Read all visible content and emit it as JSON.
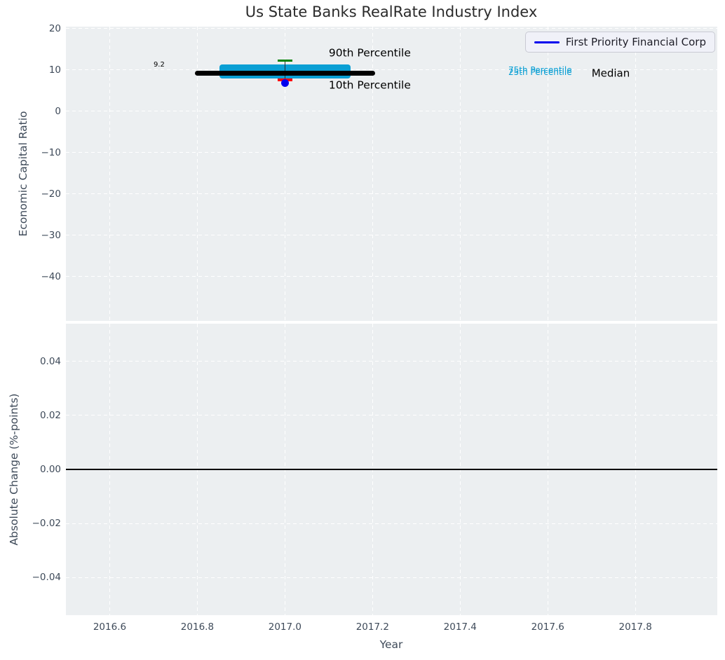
{
  "title": "Us State Banks RealRate Industry Index",
  "legend": {
    "label": "First Priority Financial Corp"
  },
  "colors": {
    "figure_background": "#ffffff",
    "plot_background": "#eceff1",
    "grid": "#ffffff",
    "tick_text": "#3e4a59",
    "title_text": "#2b2b2b",
    "percentile_box": "#0a9fd4",
    "median_line": "#000000",
    "whisker": "#2a2a2a",
    "p90_cap": "#008000",
    "p10_cap": "#ff0000",
    "company_marker": "#0000ee",
    "zero_line": "#000000"
  },
  "chart_data": [
    {
      "type": "box",
      "name": "economic-capital-ratio",
      "ylabel": "Economic Capital Ratio",
      "ylim": [
        -50.7,
        20.5
      ],
      "yticks": [
        20,
        10,
        0,
        -10,
        -20,
        -30,
        -40
      ],
      "xlim": [
        2016.5,
        2017.987
      ],
      "xticks": [
        2016.6,
        2016.8,
        2017.0,
        2017.2,
        2017.4,
        2017.6,
        2017.8
      ],
      "show_x_tick_labels": false,
      "grid": true,
      "industry_box": {
        "center_year": 2017.0,
        "median": 9.2,
        "median_label": "9.2",
        "median_year_span": [
          2016.8,
          2017.2
        ],
        "p75": 10.6,
        "p25": 8.8,
        "box_year_span": [
          2016.85,
          2017.15
        ],
        "p90": 12.3,
        "p10": 7.6,
        "cap_half_width_years": 0.017
      },
      "company_point": {
        "label": "First Priority Financial Corp",
        "year": 2017.0,
        "value": 6.8
      },
      "annotations": [
        {
          "text": "90th Percentile",
          "year": 2017.1,
          "value": 14.1,
          "color": "#000000",
          "size": 15.5
        },
        {
          "text": "10th Percentile",
          "year": 2017.1,
          "value": 6.2,
          "color": "#000000",
          "size": 15.5
        },
        {
          "text": "9.2",
          "year": 2016.7,
          "value": 11.1,
          "color": "#000000",
          "size": 10
        },
        {
          "text": "75th Percentile",
          "year": 2017.51,
          "value": 10.0,
          "color": "#0a9fd4",
          "size": 12
        },
        {
          "text": "25th Percentile",
          "year": 2017.51,
          "value": 9.4,
          "color": "#0a9fd4",
          "size": 12
        },
        {
          "text": "Median",
          "year": 2017.7,
          "value": 9.1,
          "color": "#000000",
          "size": 15
        }
      ]
    },
    {
      "type": "line",
      "name": "absolute-change",
      "ylabel": "Absolute Change (%-points)",
      "xlabel": "Year",
      "ylim": [
        -0.054,
        0.054
      ],
      "yticks": [
        0.04,
        0.02,
        0,
        -0.02,
        -0.04
      ],
      "xlim": [
        2016.5,
        2017.987
      ],
      "xticks": [
        2016.6,
        2016.8,
        2017.0,
        2017.2,
        2017.4,
        2017.6,
        2017.8
      ],
      "show_x_tick_labels": true,
      "grid": true,
      "zero_line_value": 0,
      "series": []
    }
  ]
}
